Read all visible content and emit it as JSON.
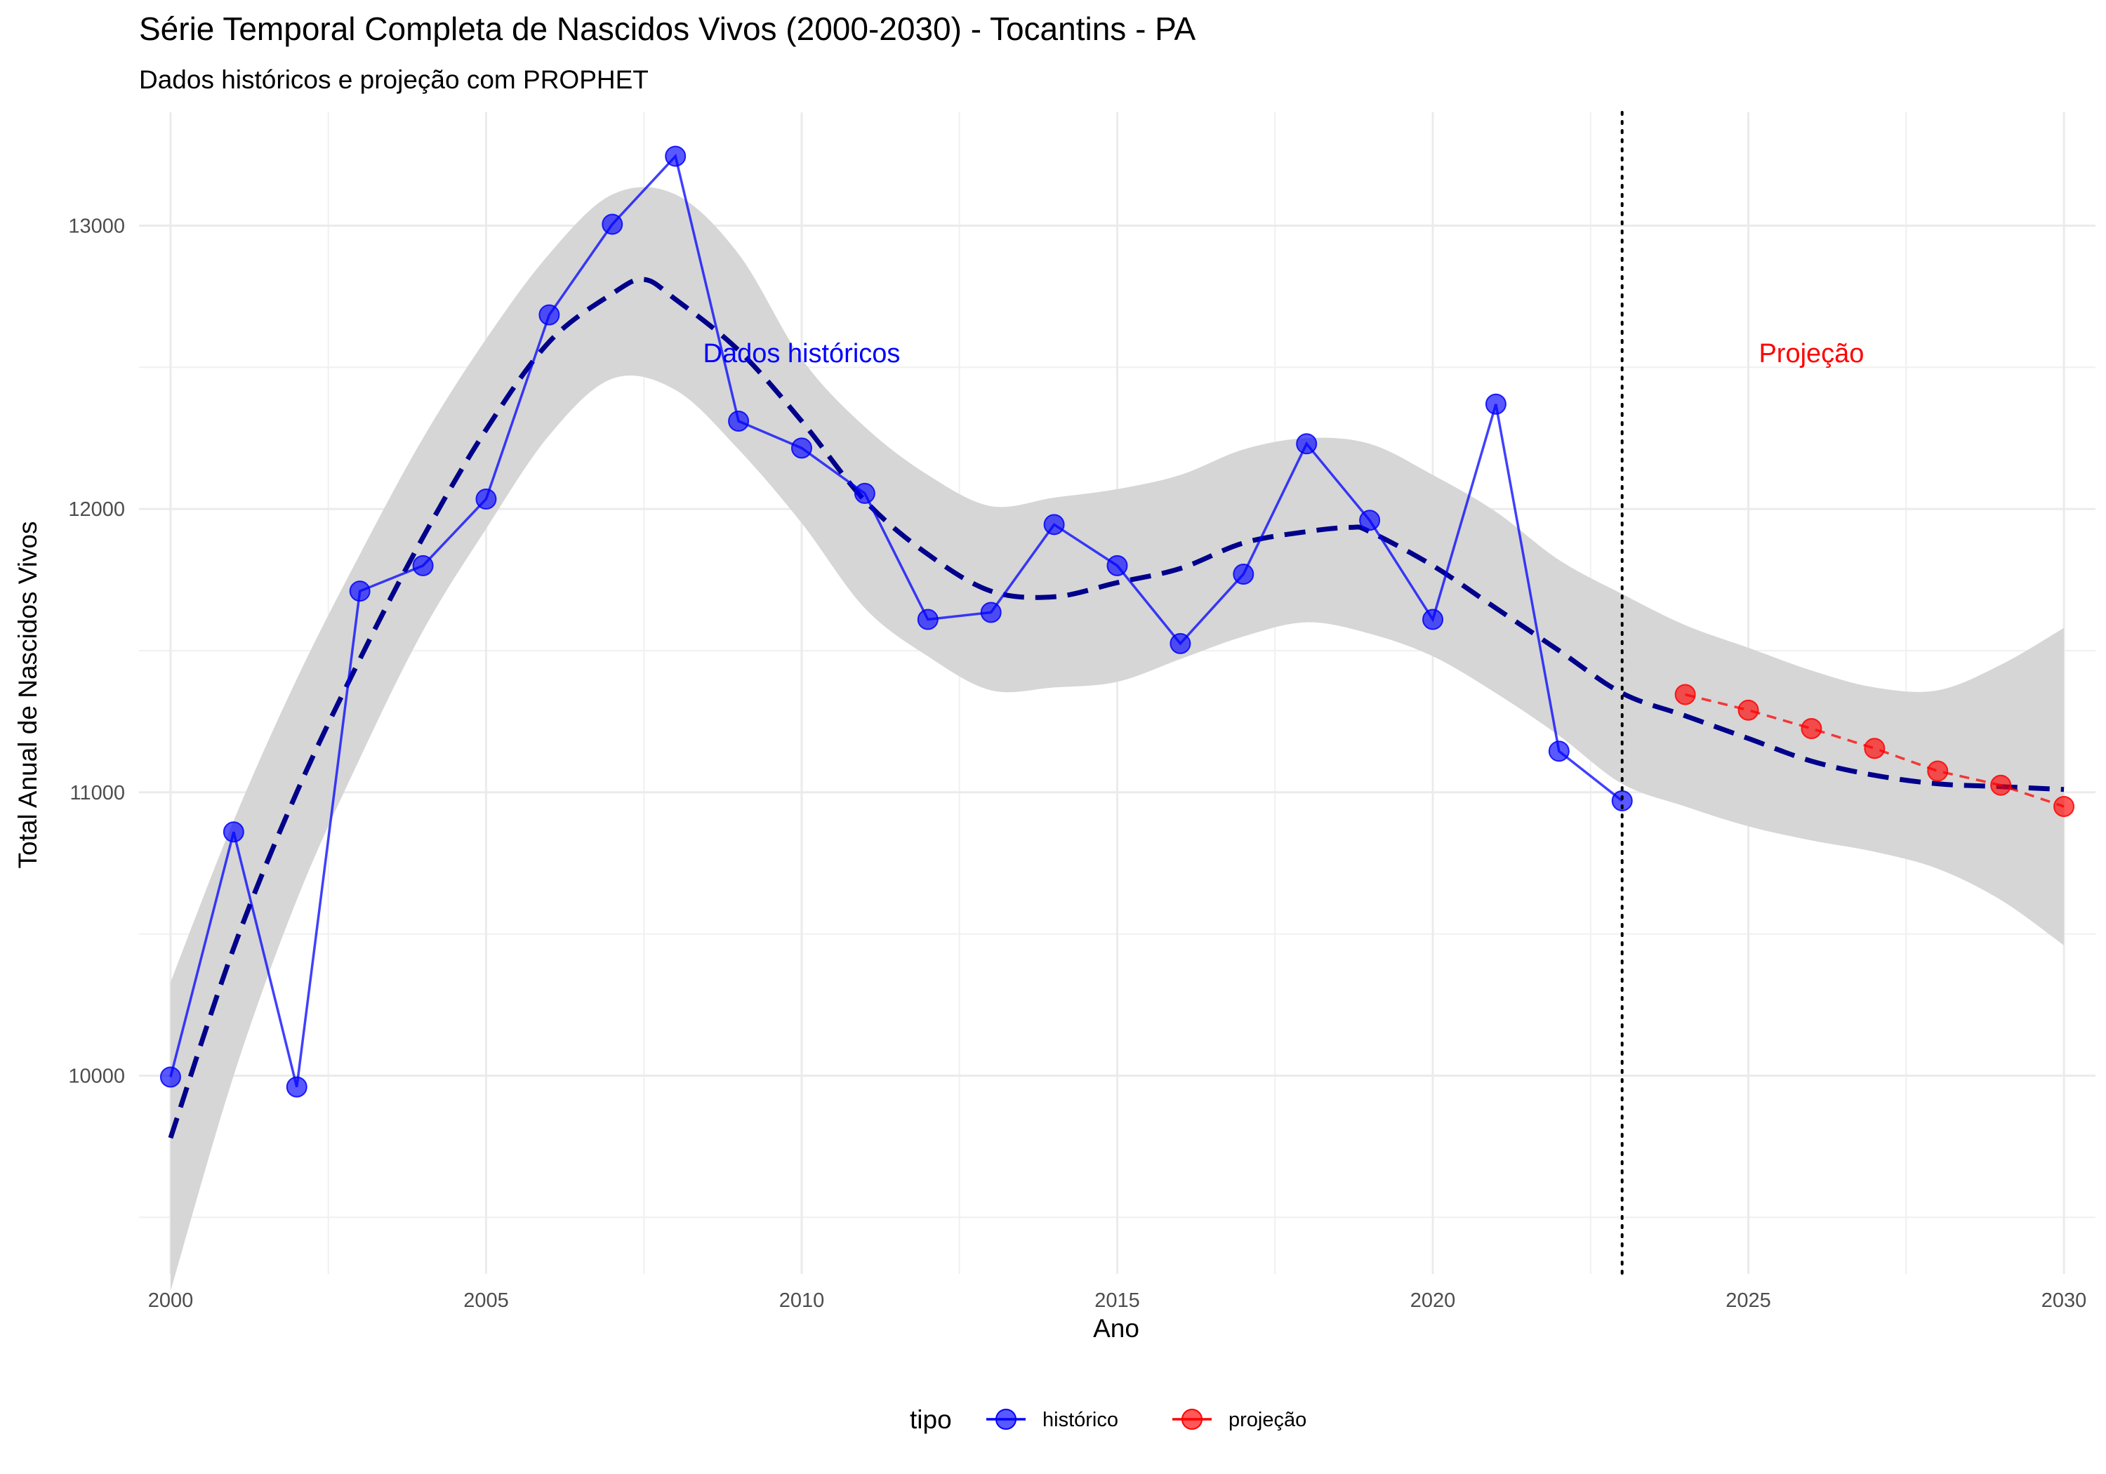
{
  "chart_data": {
    "type": "line",
    "title": "Série Temporal Completa de Nascidos Vivos (2000-2030) -  Tocantins - PA",
    "subtitle": "Dados históricos e projeção com PROPHET",
    "xlabel": "Ano",
    "ylabel": "Total Anual de Nascidos Vivos",
    "xlim": [
      1999.5,
      2030.5
    ],
    "ylim": [
      9300,
      13400
    ],
    "x_ticks": [
      2000,
      2005,
      2010,
      2015,
      2020,
      2025,
      2030
    ],
    "y_ticks": [
      10000,
      11000,
      12000,
      13000
    ],
    "grid": true,
    "legend_position": "bottom",
    "legend_title": "tipo",
    "vline_x": 2023,
    "annotations": [
      {
        "text": "Dados históricos",
        "x": 2010,
        "y": 12550,
        "color": "#0000ff"
      },
      {
        "text": "Projeção",
        "x": 2026,
        "y": 12550,
        "color": "#ff0000"
      }
    ],
    "series": [
      {
        "name": "histórico",
        "color": "#0000ff",
        "x": [
          2000,
          2001,
          2002,
          2003,
          2004,
          2005,
          2006,
          2007,
          2008,
          2009,
          2010,
          2011,
          2012,
          2013,
          2014,
          2015,
          2016,
          2017,
          2018,
          2019,
          2020,
          2021,
          2022,
          2023
        ],
        "values": [
          9995,
          10860,
          9960,
          11710,
          11800,
          12035,
          12685,
          13005,
          13245,
          12310,
          12215,
          12055,
          11610,
          11635,
          11945,
          11800,
          11525,
          11770,
          12230,
          11960,
          11610,
          12370,
          11145,
          10970
        ]
      },
      {
        "name": "projeção",
        "color": "#ff0000",
        "x": [
          2024,
          2025,
          2026,
          2027,
          2028,
          2029,
          2030
        ],
        "values": [
          11345,
          11290,
          11225,
          11155,
          11075,
          11025,
          10950
        ]
      }
    ],
    "trend": {
      "color": "#00008b",
      "x": [
        2000,
        2001,
        2002,
        2003,
        2004,
        2005,
        2006,
        2007,
        2007.5,
        2008,
        2009,
        2010,
        2011,
        2012,
        2013,
        2014,
        2015,
        2016,
        2017,
        2018,
        2018.7,
        2019,
        2020,
        2021,
        2022,
        2023,
        2024,
        2025,
        2026,
        2027,
        2028,
        2029,
        2030
      ],
      "values": [
        9780,
        10450,
        11000,
        11470,
        11900,
        12280,
        12590,
        12760,
        12810,
        12740,
        12560,
        12310,
        12030,
        11840,
        11710,
        11690,
        11740,
        11790,
        11880,
        11920,
        11935,
        11920,
        11800,
        11650,
        11500,
        11350,
        11270,
        11190,
        11110,
        11060,
        11030,
        11020,
        11010
      ]
    },
    "confidence_band": {
      "x": [
        2000,
        2001,
        2002,
        2003,
        2004,
        2005,
        2006,
        2007,
        2008,
        2009,
        2010,
        2011,
        2012,
        2013,
        2014,
        2015,
        2016,
        2017,
        2018,
        2019,
        2020,
        2021,
        2022,
        2023,
        2024,
        2025,
        2026,
        2027,
        2028,
        2029,
        2030
      ],
      "lower": [
        9240,
        10000,
        10620,
        11120,
        11570,
        11930,
        12260,
        12460,
        12420,
        12210,
        11950,
        11650,
        11480,
        11360,
        11370,
        11390,
        11470,
        11550,
        11600,
        11560,
        11480,
        11350,
        11200,
        11030,
        10950,
        10880,
        10830,
        10790,
        10730,
        10620,
        10460
      ],
      "upper": [
        10330,
        10900,
        11400,
        11840,
        12250,
        12600,
        12900,
        13110,
        13110,
        12900,
        12530,
        12290,
        12120,
        12010,
        12040,
        12070,
        12120,
        12210,
        12250,
        12230,
        12120,
        11990,
        11820,
        11700,
        11590,
        11510,
        11430,
        11370,
        11360,
        11450,
        11580
      ]
    }
  }
}
